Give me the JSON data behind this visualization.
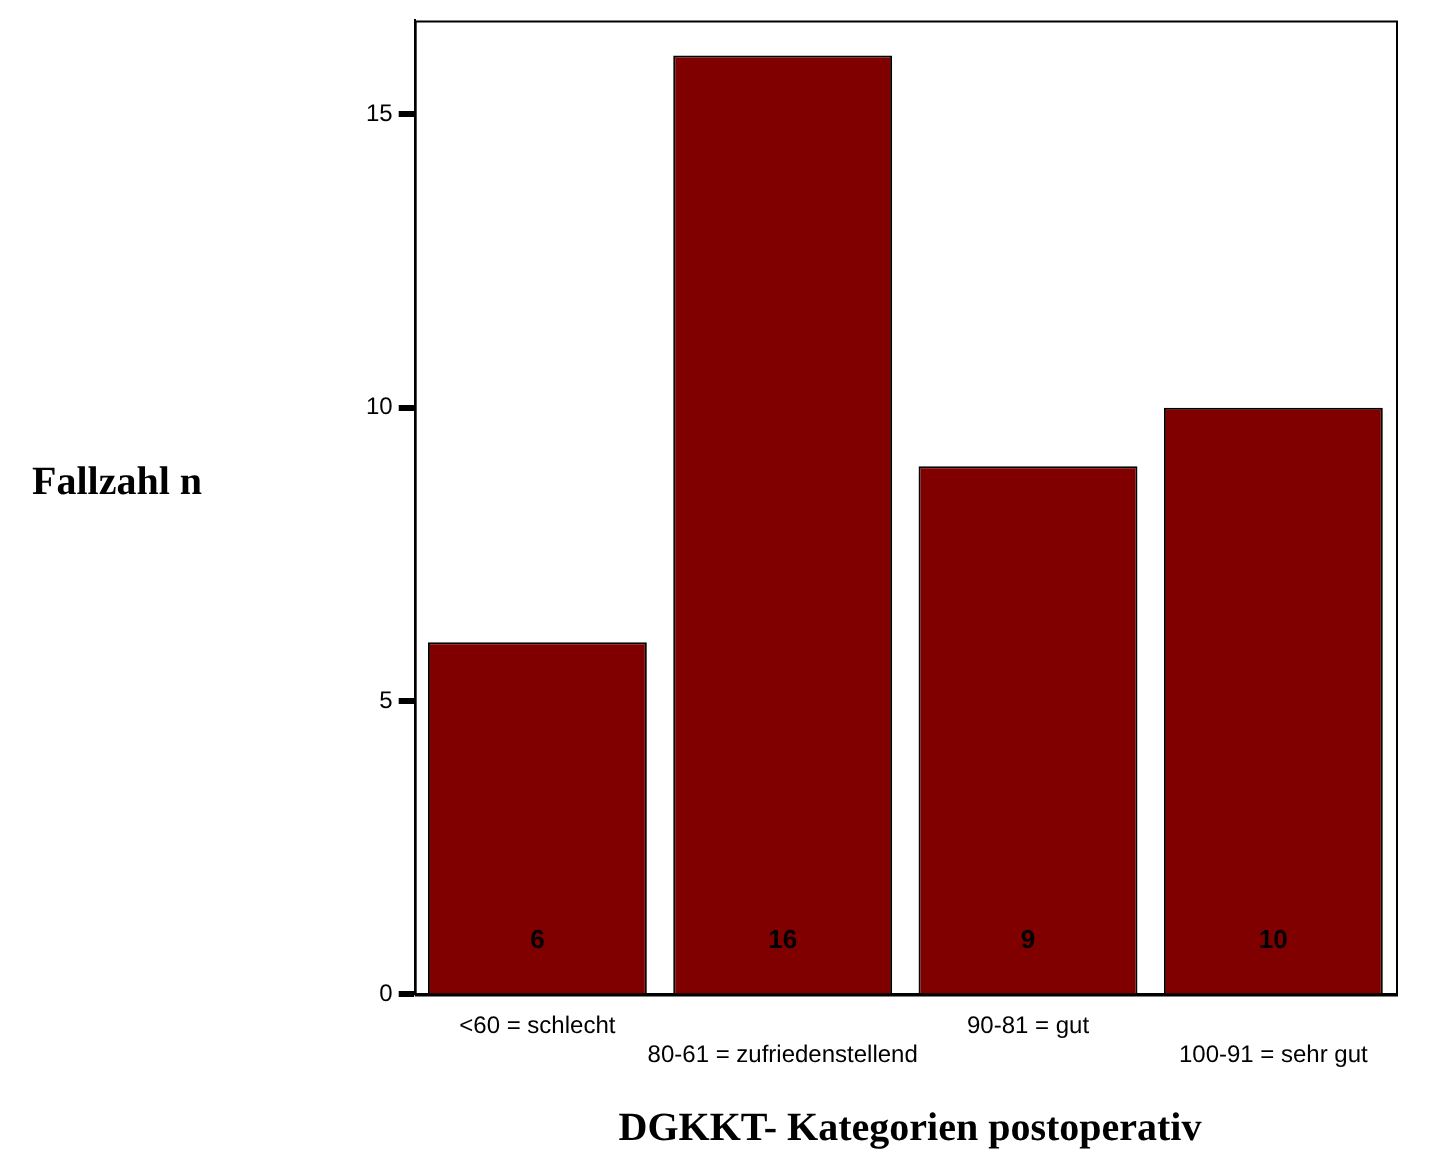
{
  "chart_data": {
    "type": "bar",
    "xlabel": "DGKKT- Kategorien postoperativ",
    "ylabel": "Fallzahl n",
    "categories": [
      "<60 = schlecht",
      "80-61 = zufriedenstellend",
      "90-81 = gut",
      "100-91 = sehr gut"
    ],
    "values": [
      6,
      16,
      9,
      10
    ],
    "color": "#800000",
    "ylim": [
      0,
      16.6
    ],
    "yticks": [
      0,
      5,
      10,
      15
    ],
    "grid": false,
    "legend": false,
    "data_labels": true
  }
}
